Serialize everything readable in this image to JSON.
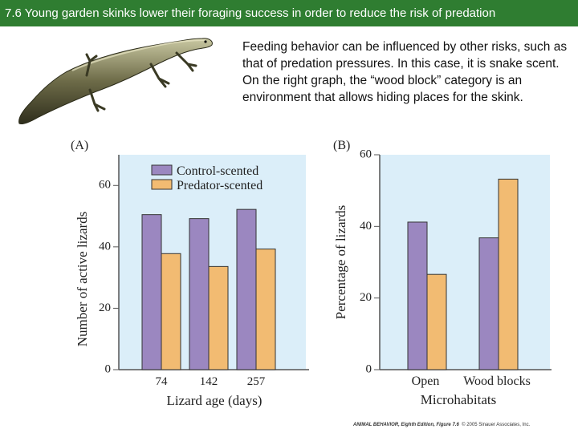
{
  "slide": {
    "title": "7.6  Young garden skinks lower their foraging success in order to reduce the risk of predation",
    "description": "Feeding behavior can be influenced by other risks, such as that of predation pressures.  In this case, it is snake scent.  On the right graph, the “wood block” category is an environment that allows hiding places for the skink.",
    "credit_book": "ANIMAL BEHAVIOR, Eighth Edition, Figure 7.6",
    "credit_copy": "© 2005 Sinauer Associates, Inc."
  },
  "colors": {
    "title_bar": "#2f7d31",
    "plot_bg": "#dbeef9",
    "control": "#9b87c0",
    "predator": "#f2bb72",
    "bar_stroke": "#333333"
  },
  "chart_data": [
    {
      "panel": "(A)",
      "type": "bar",
      "categories": [
        "74",
        "142",
        "257"
      ],
      "series": [
        {
          "name": "Control-scented",
          "values": [
            50.5,
            49.2,
            52.2
          ]
        },
        {
          "name": "Predator-scented",
          "values": [
            37.8,
            33.6,
            39.3
          ]
        }
      ],
      "xlabel": "Lizard age (days)",
      "ylabel": "Number of active lizards",
      "ylim": [
        0,
        70
      ],
      "yticks": [
        "0",
        "20",
        "40",
        "60"
      ],
      "legend_position": "top",
      "grid": false
    },
    {
      "panel": "(B)",
      "type": "bar",
      "categories": [
        "Open",
        "Wood blocks"
      ],
      "series": [
        {
          "name": "Control-scented",
          "values": [
            41.2,
            36.8
          ]
        },
        {
          "name": "Predator-scented",
          "values": [
            26.6,
            53.2
          ]
        }
      ],
      "xlabel": "Microhabitats",
      "ylabel": "Percentage of lizards",
      "ylim": [
        0,
        60
      ],
      "yticks": [
        "0",
        "20",
        "40",
        "60"
      ],
      "grid": false
    }
  ]
}
